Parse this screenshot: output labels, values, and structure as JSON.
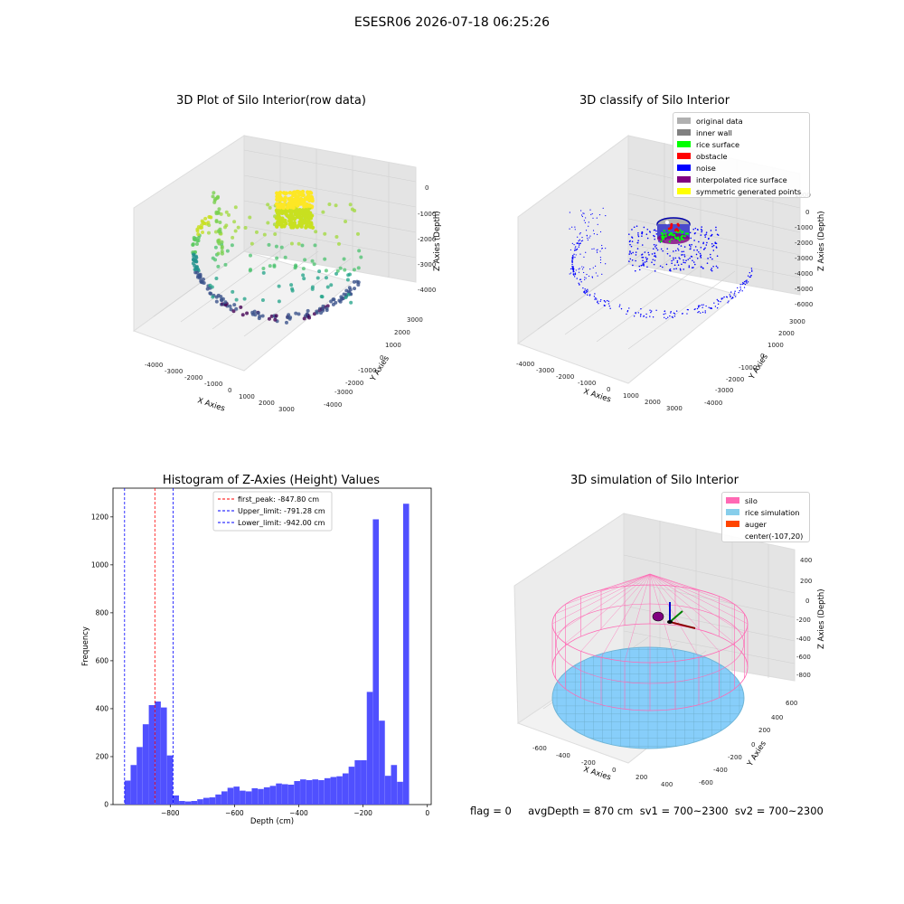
{
  "figure": {
    "suptitle": "ESESR06 2026-07-18 06:25:26"
  },
  "footer": {
    "text": "flag = 0     avgDepth = 870 cm  sv1 = 700~2300  sv2 = 700~2300"
  },
  "panels": {
    "raw": {
      "title": "3D Plot of Silo Interior(row data)"
    },
    "classify": {
      "title": "3D classify of Silo Interior"
    },
    "hist": {
      "title": "Histogram of Z-Axies (Height) Values"
    },
    "sim": {
      "title": "3D simulation of Silo Interior"
    }
  },
  "colors": {
    "hist_bar": "#5050ff",
    "first_peak": "#ff0000",
    "limits": "#0000ff",
    "silo": "#ff69b4",
    "rice": "#87cefa",
    "auger": "#ff4500"
  },
  "chart_data": [
    {
      "type": "scatter",
      "id": "raw3d",
      "title": "3D Plot of Silo Interior(row data)",
      "xlabel": "X Axies",
      "ylabel": "Y Axies",
      "zlabel": "Z Axies (Depth)",
      "x_ticks": [
        "-4000",
        "-3000",
        "-2000",
        "-1000",
        "0",
        "1000",
        "2000",
        "3000"
      ],
      "y_ticks": [
        "3000",
        "2000",
        "1000",
        "0",
        "-1000",
        "-2000",
        "-3000",
        "-4000"
      ],
      "z_ticks": [
        "0",
        "-1000",
        "-2000",
        "-3000",
        "-4000"
      ],
      "grid": true,
      "colormap": "viridis"
    },
    {
      "type": "scatter",
      "id": "classify3d",
      "title": "3D classify of Silo Interior",
      "xlabel": "X Axies",
      "ylabel": "Y Axies",
      "zlabel": "Z Axies (Depth)",
      "x_ticks": [
        "-4000",
        "-3000",
        "-2000",
        "-1000",
        "0",
        "1000",
        "2000",
        "3000"
      ],
      "y_ticks": [
        "3000",
        "2000",
        "1000",
        "0",
        "-1000",
        "-2000",
        "-3000",
        "-4000"
      ],
      "z_ticks": [
        "1000",
        "0",
        "-1000",
        "-2000",
        "-3000",
        "-4000",
        "-5000",
        "-6000"
      ],
      "grid": true,
      "legend_position": "top-right",
      "legend": [
        {
          "label": "original data",
          "color": "#b0b0b0"
        },
        {
          "label": "inner wall",
          "color": "#808080"
        },
        {
          "label": "rice surface",
          "color": "#00ff00"
        },
        {
          "label": "obstacle",
          "color": "#ff0000"
        },
        {
          "label": "noise",
          "color": "#0000ff"
        },
        {
          "label": "interpolated rice surface",
          "color": "#800080"
        },
        {
          "label": "symmetric generated points",
          "color": "#ffff00"
        }
      ]
    },
    {
      "type": "bar",
      "id": "histogram",
      "title": "Histogram of Z-Axies (Height) Values",
      "xlabel": "Depth (cm)",
      "ylabel": "Frequency",
      "xlim": [
        -978,
        12
      ],
      "ylim": [
        0,
        1320
      ],
      "x_ticks": [
        -800,
        -600,
        -400,
        -200,
        0
      ],
      "y_ticks": [
        0,
        200,
        400,
        600,
        800,
        1000,
        1200
      ],
      "bin_start": -942,
      "bin_width": 18.84,
      "values": [
        100,
        165,
        240,
        335,
        415,
        430,
        405,
        205,
        38,
        15,
        13,
        15,
        22,
        28,
        30,
        42,
        55,
        70,
        75,
        58,
        55,
        68,
        65,
        72,
        78,
        88,
        85,
        83,
        98,
        105,
        102,
        105,
        102,
        110,
        115,
        118,
        130,
        158,
        185,
        185,
        470,
        1190,
        350,
        120,
        165,
        95,
        1255
      ],
      "vlines": [
        {
          "label": "first_peak: -847.80 cm",
          "x": -847.8,
          "color": "#ff0000"
        },
        {
          "label": "Upper_limit: -791.28 cm",
          "x": -791.28,
          "color": "#0000ff"
        },
        {
          "label": "Lower_limit: -942.00 cm",
          "x": -942.0,
          "color": "#0000ff"
        }
      ],
      "legend_position": "top-center",
      "grid": false
    },
    {
      "type": "scatter",
      "id": "sim3d",
      "title": "3D simulation of Silo Interior",
      "xlabel": "X Axies",
      "ylabel": "Y Axies",
      "zlabel": "Z Axies (Depth)",
      "x_ticks": [
        "-600",
        "-400",
        "-200",
        "0",
        "200",
        "400"
      ],
      "y_ticks": [
        "600",
        "400",
        "200",
        "0",
        "-200",
        "-400",
        "-600"
      ],
      "z_ticks": [
        "400",
        "200",
        "0",
        "-200",
        "-400",
        "-600",
        "-800"
      ],
      "grid": true,
      "legend_position": "top-right",
      "legend": [
        {
          "label": "silo",
          "color": "#ff69b4"
        },
        {
          "label": "rice simulation",
          "color": "#87ceeb"
        },
        {
          "label": "auger",
          "color": "#ff4500"
        },
        {
          "label": "center(-107,20)",
          "color": ""
        }
      ]
    }
  ]
}
